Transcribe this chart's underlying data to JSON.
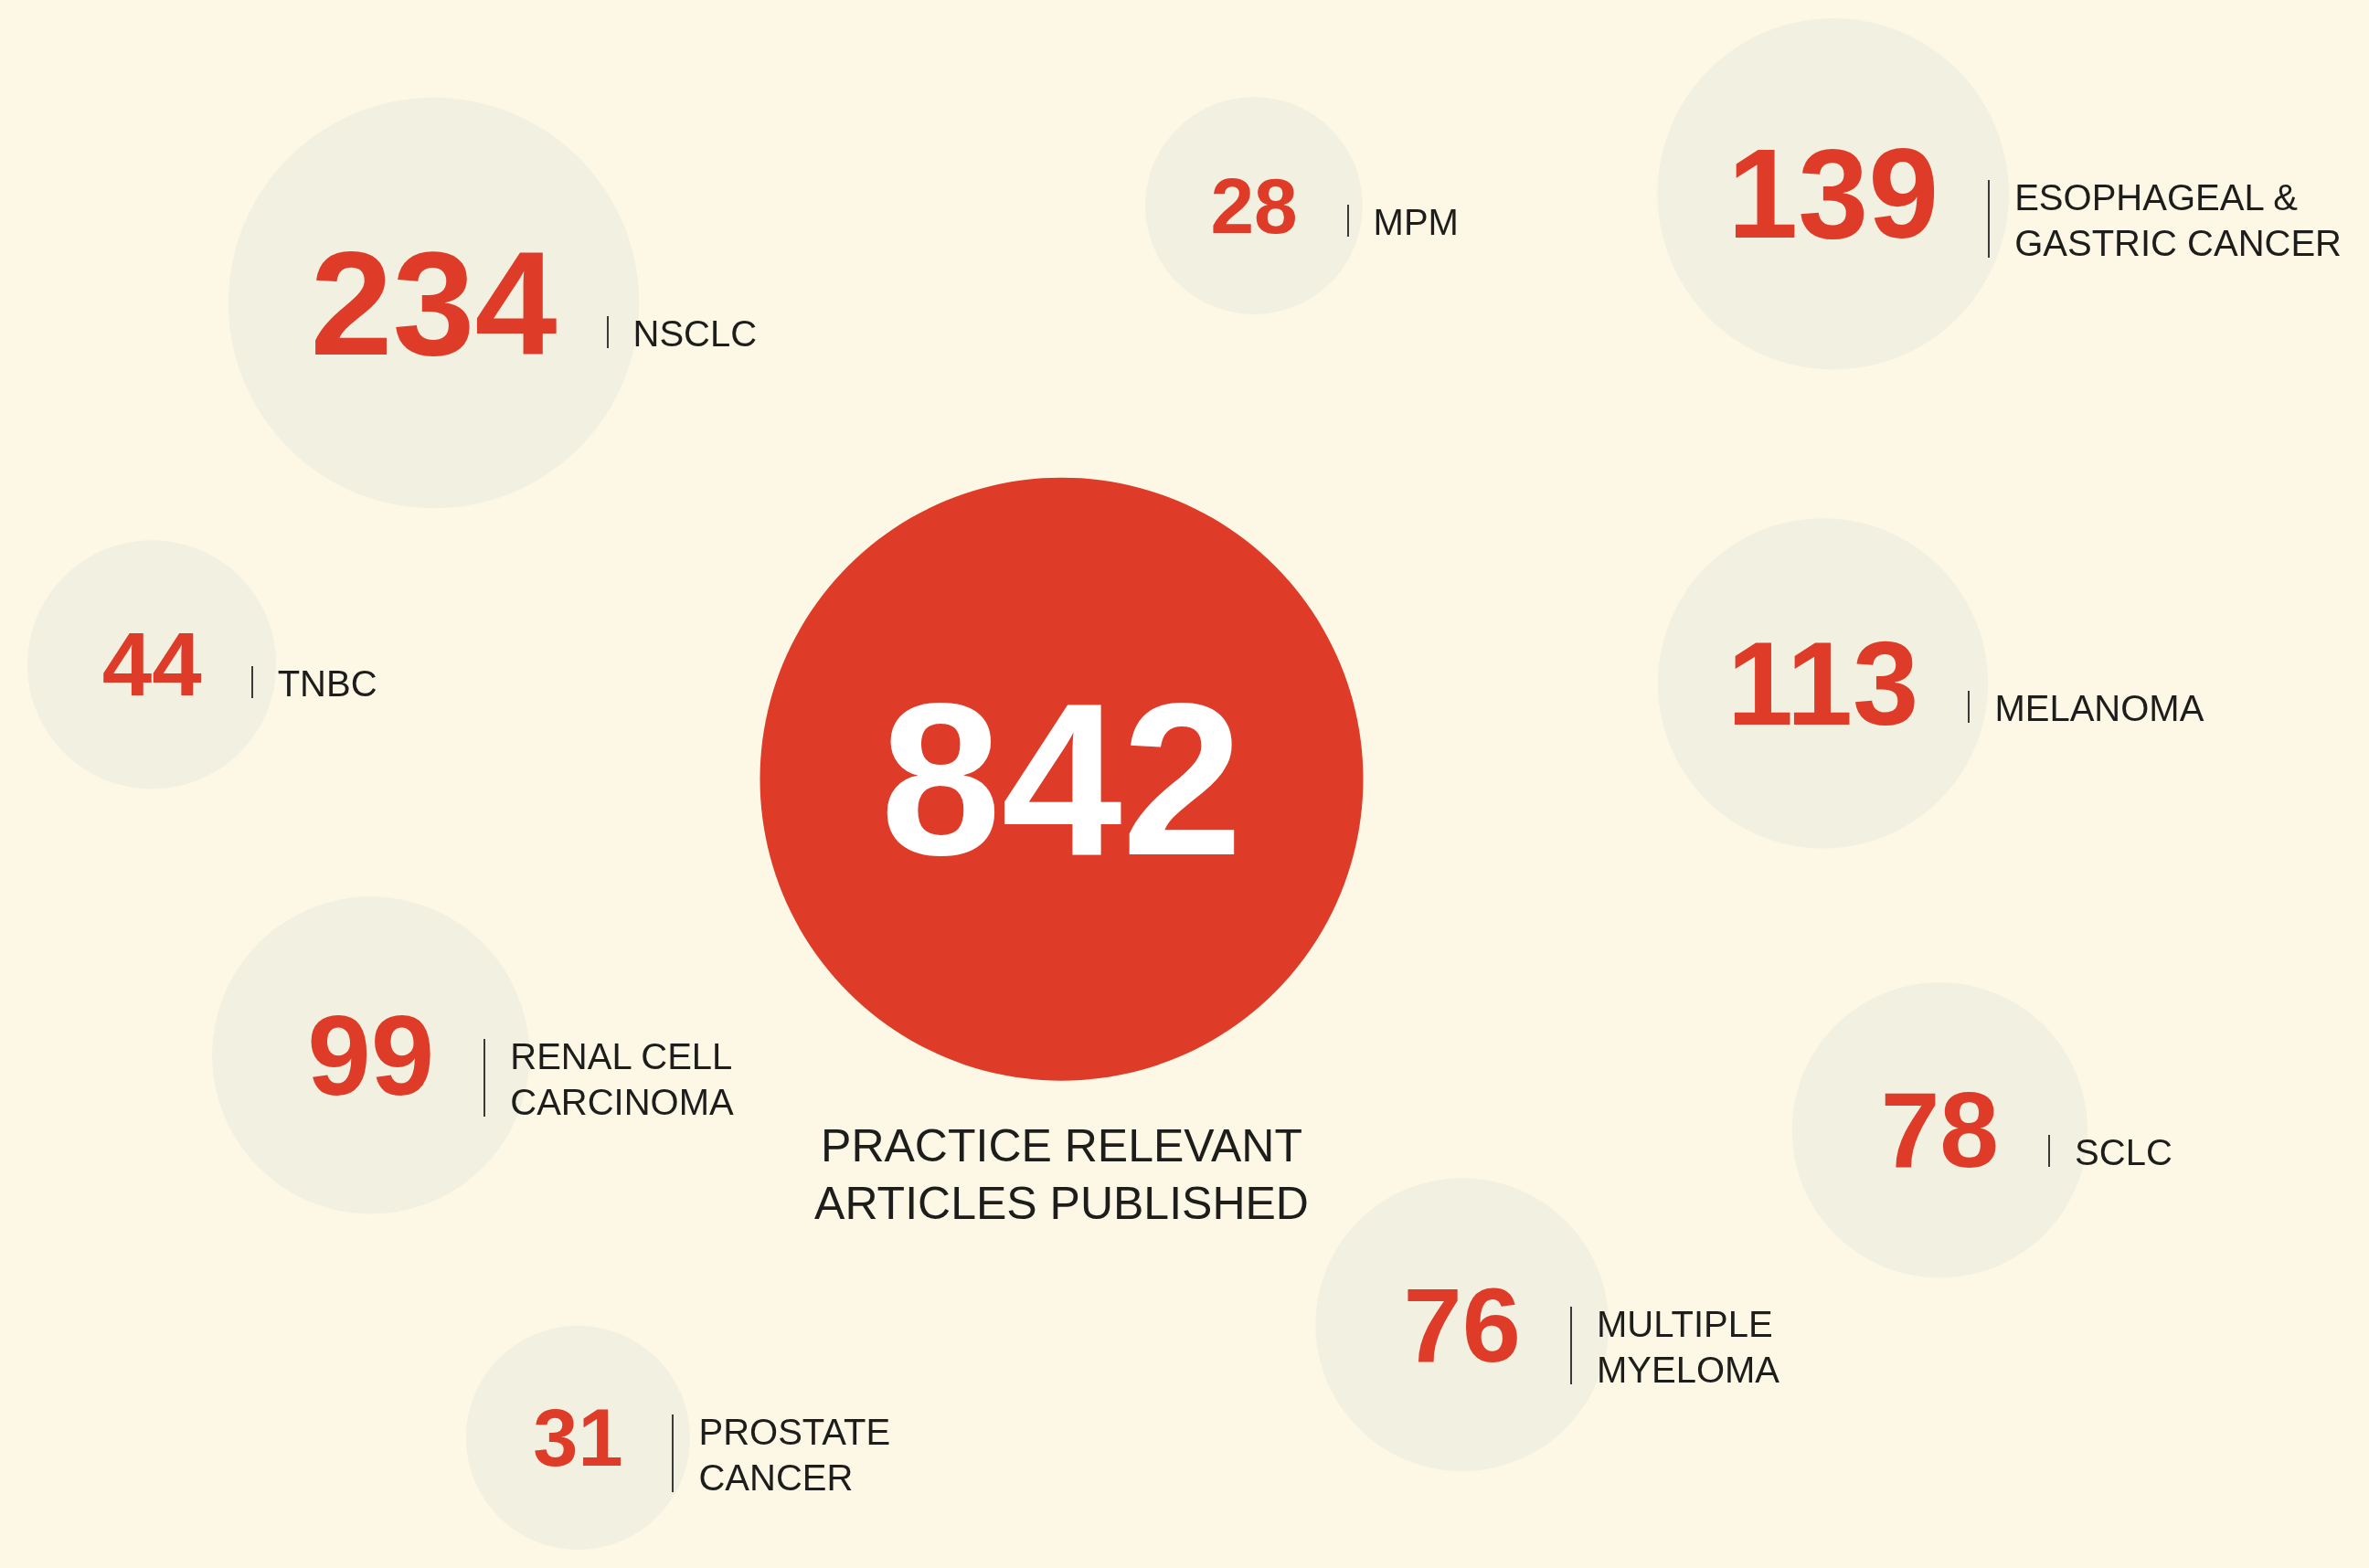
{
  "chart_data": {
    "type": "other",
    "categories": [
      "PRACTICE RELEVANT ARTICLES PUBLISHED",
      "MPM",
      "ESOPHAGEAL & GASTRIC CANCER",
      "MELANOMA",
      "SCLC",
      "MULTIPLE MYELOMA",
      "PROSTATE CANCER",
      "RENAL CELL CARCINOMA",
      "TNBC",
      "NSCLC"
    ],
    "values": [
      842,
      28,
      139,
      113,
      78,
      76,
      31,
      99,
      44,
      234
    ],
    "colors": [
      "#de3b28",
      "#f2f0e0",
      "#f2f0e0",
      "#f2f0e0",
      "#f2f0e0",
      "#f2f0e0",
      "#f2f0e0",
      "#f2f0e0",
      "#f2f0e0",
      "#f2f0e0"
    ],
    "color": "#de3b28",
    "data_labels": true
  }
}
